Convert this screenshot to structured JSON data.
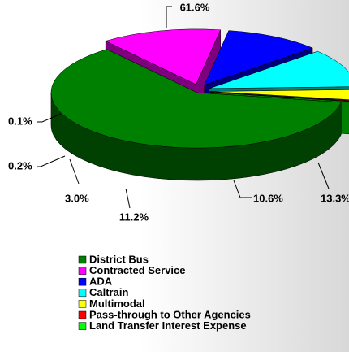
{
  "chart_data": {
    "type": "pie",
    "categories": [
      "District Bus",
      "Contracted Service",
      "ADA",
      "Caltrain",
      "Multimodal",
      "Pass-through to Other Agencies",
      "Land Transfer Interest Expense"
    ],
    "values": [
      61.6,
      13.3,
      10.6,
      11.2,
      3.0,
      0.2,
      0.1
    ],
    "value_labels": [
      "61.6%",
      "13.3%",
      "10.6%",
      "11.2%",
      "3.0%",
      "0.2%",
      "0.1%"
    ],
    "colors": [
      "#008000",
      "#ff00ff",
      "#0000ff",
      "#00ffff",
      "#ffff00",
      "#ff0000",
      "#00ff00"
    ],
    "legend": "bottom"
  }
}
